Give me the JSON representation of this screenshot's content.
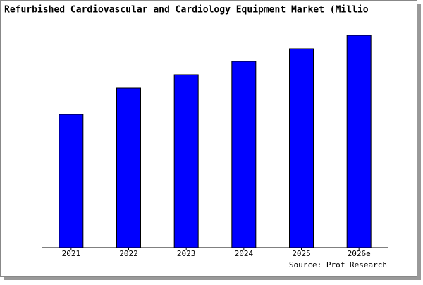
{
  "chart_data": {
    "type": "bar",
    "title": "Refurbished Cardiovascular and Cardiology Equipment Market (Millio",
    "source": "Source: Prof Research",
    "categories": [
      "2021",
      "2022",
      "2023",
      "2024",
      "2025",
      "2026e"
    ],
    "values": [
      189,
      226,
      245,
      264,
      282,
      301
    ],
    "color": "#0000ff",
    "ylim": [
      0,
      306
    ]
  }
}
